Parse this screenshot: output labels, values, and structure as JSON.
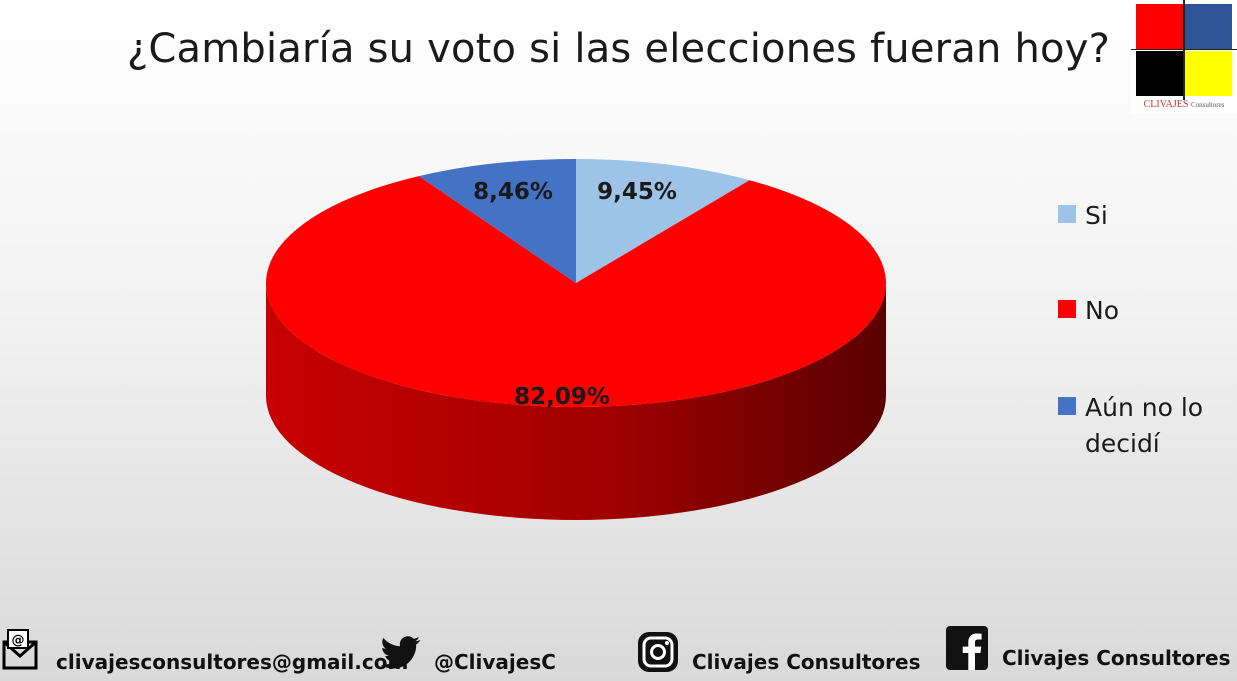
{
  "title": "¿Cambiaría su voto si las elecciones fueran hoy?",
  "logo": {
    "brand": "CLIVAJES",
    "suffix": "Consultores",
    "colors": [
      "#ff0000",
      "#2f5597",
      "#000000",
      "#ffff00"
    ]
  },
  "chart_data": {
    "type": "pie",
    "title": "¿Cambiaría su voto si las elecciones fueran hoy?",
    "categories": [
      "Si",
      "No",
      "Aún no lo decidí"
    ],
    "values": [
      9.45,
      82.09,
      8.46
    ],
    "labels": [
      "9,45%",
      "82,09%",
      "8,46%"
    ],
    "colors": [
      "#9dc3e6",
      "#ff0000",
      "#4472c4"
    ],
    "legend_position": "right",
    "three_d": true
  },
  "footer": {
    "email": "clivajesconsultores@gmail.com",
    "twitter": "@ClivajesC",
    "instagram": "Clivajes Consultores",
    "facebook": "Clivajes Consultores",
    "icons": [
      "email-icon",
      "twitter-icon",
      "instagram-icon",
      "facebook-icon"
    ]
  }
}
